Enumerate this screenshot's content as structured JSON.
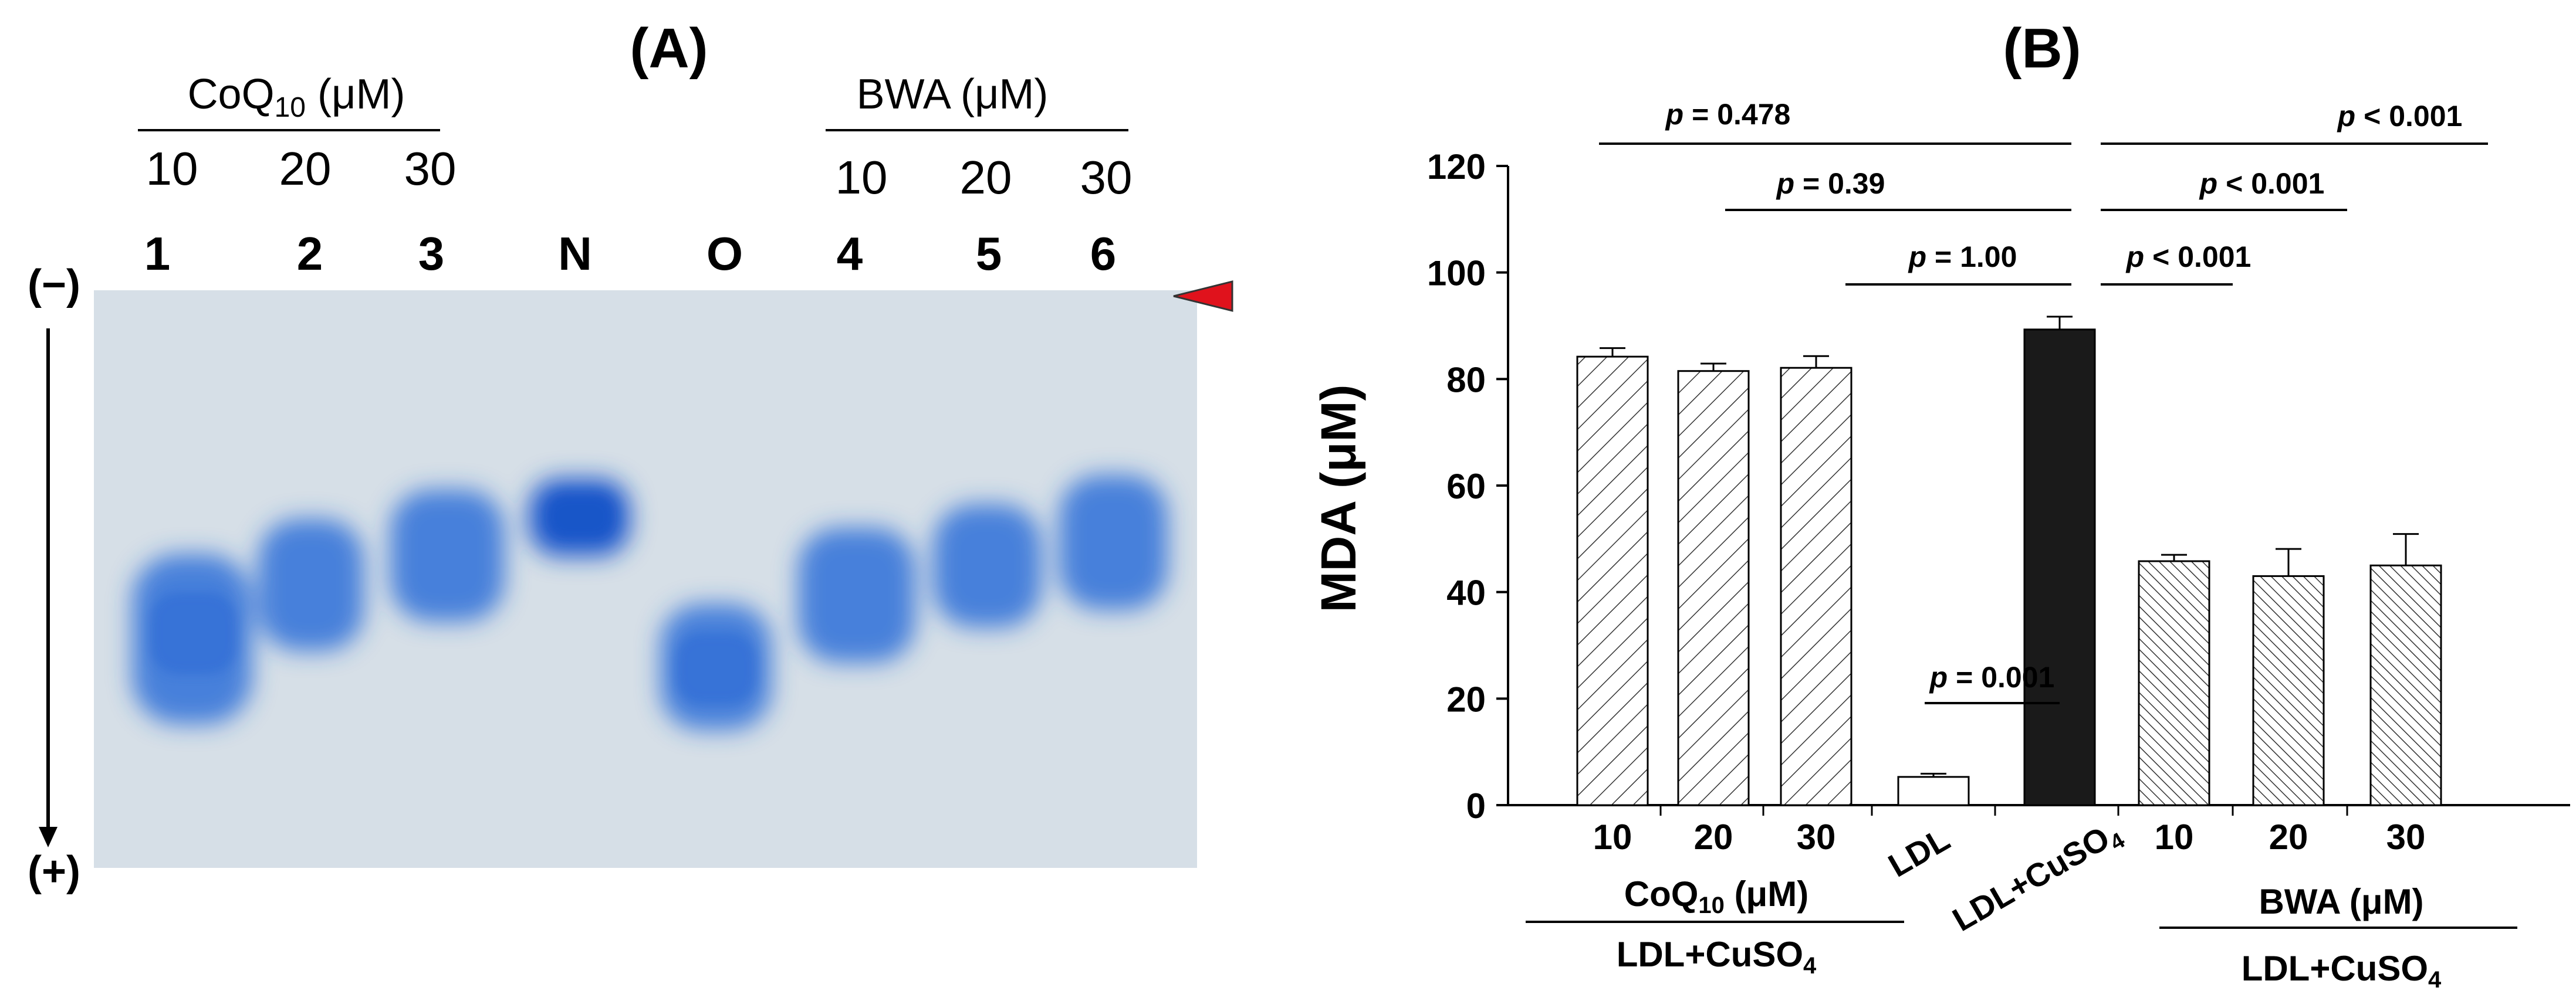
{
  "panel_a": {
    "label": "(A)",
    "coq_group": {
      "name": "CoQ",
      "sub": "10",
      "unit": " (μM)",
      "concs": [
        "10",
        "20",
        "30"
      ]
    },
    "bwa_group": {
      "name": "BWA",
      "unit": " (μM)",
      "concs": [
        "10",
        "20",
        "30"
      ]
    },
    "lanes": [
      "1",
      "2",
      "3",
      "N",
      "O",
      "4",
      "5",
      "6"
    ],
    "neg_label": "(−)",
    "pos_label": "(+)",
    "colors": {
      "gel_bg": "#d7e0e8",
      "band": "#2f6fd6",
      "band_dark": "#1756c8",
      "marker": "#e0121c"
    }
  },
  "chart_data": {
    "type": "bar",
    "title": "(B)",
    "ylabel": "MDA (μM)",
    "ylim": [
      0,
      120
    ],
    "yticks": [
      0,
      20,
      40,
      60,
      80,
      100,
      120
    ],
    "categories": [
      "10",
      "20",
      "30",
      "LDL",
      "LDL+CuSO4",
      "10",
      "20",
      "30"
    ],
    "values": [
      84.2,
      81.5,
      82.1,
      5.3,
      89.3,
      45.8,
      43.0,
      45.0
    ],
    "errors": [
      1.6,
      1.4,
      2.2,
      0.6,
      2.4,
      1.2,
      5.1,
      5.9
    ],
    "patterns": [
      "diag",
      "diag",
      "diag",
      "white",
      "black",
      "dense",
      "dense",
      "dense"
    ],
    "group_labels": {
      "coq": {
        "name": "CoQ",
        "sub": "10",
        "unit": " (μM)"
      },
      "bwa": {
        "name": "BWA",
        "unit": " (μM)"
      },
      "ldl_cuso4": {
        "main": "LDL+CuSO",
        "sub": "4"
      }
    },
    "comparisons": [
      {
        "from": 0,
        "to": 4,
        "p_value": "0.478",
        "op": "="
      },
      {
        "from": 1,
        "to": 4,
        "p_value": "0.39",
        "op": "="
      },
      {
        "from": 2,
        "to": 4,
        "p_value": "1.00",
        "op": "="
      },
      {
        "from": 3,
        "to": 4,
        "p_value": "0.001",
        "op": "="
      },
      {
        "from": 4,
        "to": 7,
        "p_value": "0.001",
        "op": "<"
      },
      {
        "from": 4,
        "to": 6,
        "p_value": "0.001",
        "op": "<"
      },
      {
        "from": 4,
        "to": 5,
        "p_value": "0.001",
        "op": "<"
      }
    ],
    "p_symbol": "p"
  }
}
